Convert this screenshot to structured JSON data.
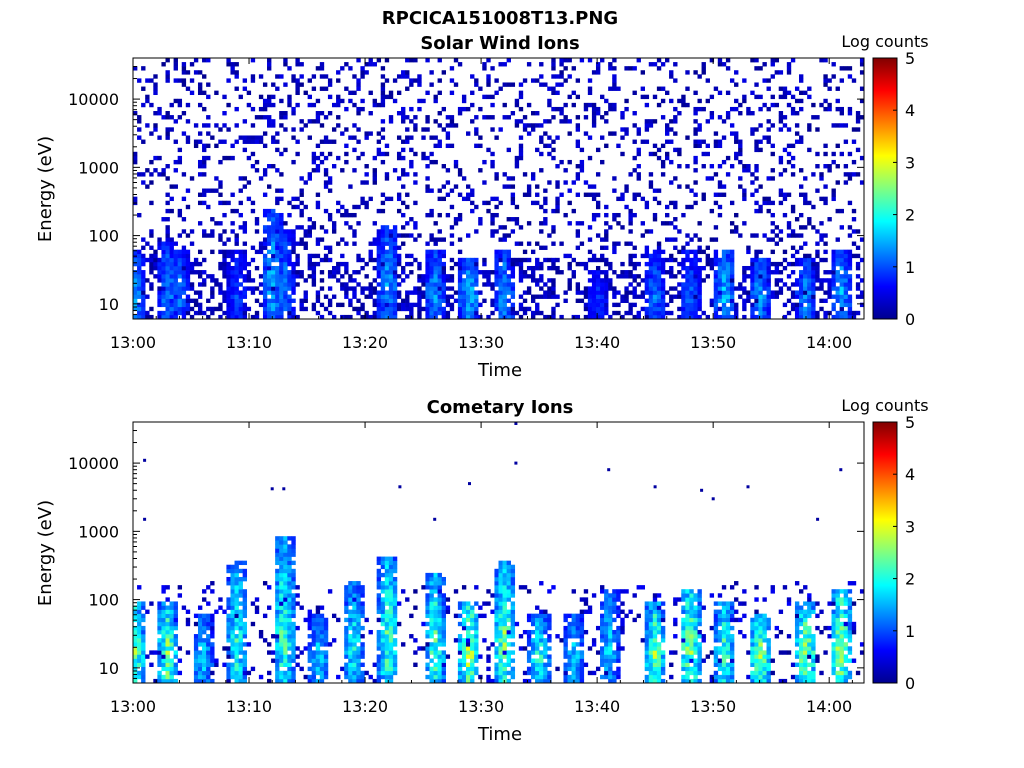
{
  "figure_title": "RPCICA151008T13.PNG",
  "colorbar": {
    "label": "Log counts",
    "range": [
      0,
      5
    ],
    "ticks": [
      "0",
      "1",
      "2",
      "3",
      "4",
      "5"
    ],
    "colormap": [
      "#00008f",
      "#0000ff",
      "#0080ff",
      "#00ffff",
      "#80ff80",
      "#ffff00",
      "#ff8000",
      "#ff0000",
      "#800000"
    ]
  },
  "chart_data": [
    {
      "type": "heatmap",
      "title": "Solar Wind Ions",
      "xlabel": "Time",
      "ylabel": "Energy (eV)",
      "yscale": "log",
      "xlim": [
        "13:00",
        "14:03"
      ],
      "ylim": [
        6,
        40000
      ],
      "x_ticks": [
        "13:00",
        "13:10",
        "13:20",
        "13:30",
        "13:40",
        "13:50",
        "14:00"
      ],
      "y_ticks": [
        "10",
        "100",
        "1000",
        "10000"
      ],
      "grid": false,
      "background_noise": {
        "energy_range": [
          6,
          40000
        ],
        "typical_log_counts": [
          0,
          0.5
        ]
      },
      "bursts": [
        {
          "t": "13:00",
          "emin": 6,
          "emax": 60,
          "peak": 1.6
        },
        {
          "t": "13:03",
          "emin": 6,
          "emax": 80,
          "peak": 1.4
        },
        {
          "t": "13:04",
          "emin": 6,
          "emax": 60,
          "peak": 1.3
        },
        {
          "t": "13:09",
          "emin": 6,
          "emax": 60,
          "peak": 1.0
        },
        {
          "t": "13:12",
          "emin": 6,
          "emax": 250,
          "peak": 1.6
        },
        {
          "t": "13:13",
          "emin": 6,
          "emax": 120,
          "peak": 1.3
        },
        {
          "t": "13:22",
          "emin": 6,
          "emax": 150,
          "peak": 1.5
        },
        {
          "t": "13:26",
          "emin": 6,
          "emax": 60,
          "peak": 1.5
        },
        {
          "t": "13:29",
          "emin": 6,
          "emax": 50,
          "peak": 1.7
        },
        {
          "t": "13:32",
          "emin": 6,
          "emax": 60,
          "peak": 1.5
        },
        {
          "t": "13:40",
          "emin": 6,
          "emax": 30,
          "peak": 1.0
        },
        {
          "t": "13:45",
          "emin": 6,
          "emax": 60,
          "peak": 1.3
        },
        {
          "t": "13:48",
          "emin": 6,
          "emax": 60,
          "peak": 1.2
        },
        {
          "t": "13:51",
          "emin": 6,
          "emax": 60,
          "peak": 1.7
        },
        {
          "t": "13:54",
          "emin": 6,
          "emax": 50,
          "peak": 1.5
        },
        {
          "t": "13:58",
          "emin": 6,
          "emax": 50,
          "peak": 1.4
        },
        {
          "t": "14:01",
          "emin": 6,
          "emax": 60,
          "peak": 1.6
        }
      ]
    },
    {
      "type": "heatmap",
      "title": "Cometary Ions",
      "xlabel": "Time",
      "ylabel": "Energy (eV)",
      "yscale": "log",
      "xlim": [
        "13:00",
        "14:03"
      ],
      "ylim": [
        6,
        40000
      ],
      "x_ticks": [
        "13:00",
        "13:10",
        "13:20",
        "13:30",
        "13:40",
        "13:50",
        "14:00"
      ],
      "y_ticks": [
        "10",
        "100",
        "1000",
        "10000"
      ],
      "grid": false,
      "background_noise": {
        "energy_range": [
          6,
          200
        ],
        "typical_log_counts": [
          0,
          0.6
        ]
      },
      "bursts": [
        {
          "t": "13:00",
          "emin": 6,
          "emax": 100,
          "peak": 2.8
        },
        {
          "t": "13:03",
          "emin": 6,
          "emax": 100,
          "peak": 2.6
        },
        {
          "t": "13:06",
          "emin": 6,
          "emax": 60,
          "peak": 1.8
        },
        {
          "t": "13:09",
          "emin": 6,
          "emax": 350,
          "peak": 2.2
        },
        {
          "t": "13:13",
          "emin": 6,
          "emax": 800,
          "peak": 2.4
        },
        {
          "t": "13:16",
          "emin": 6,
          "emax": 60,
          "peak": 1.8
        },
        {
          "t": "13:19",
          "emin": 6,
          "emax": 200,
          "peak": 2.0
        },
        {
          "t": "13:22",
          "emin": 6,
          "emax": 450,
          "peak": 2.4
        },
        {
          "t": "13:26",
          "emin": 6,
          "emax": 250,
          "peak": 2.4
        },
        {
          "t": "13:29",
          "emin": 6,
          "emax": 100,
          "peak": 2.9
        },
        {
          "t": "13:32",
          "emin": 6,
          "emax": 350,
          "peak": 2.6
        },
        {
          "t": "13:35",
          "emin": 6,
          "emax": 60,
          "peak": 2.2
        },
        {
          "t": "13:38",
          "emin": 6,
          "emax": 60,
          "peak": 1.8
        },
        {
          "t": "13:41",
          "emin": 6,
          "emax": 150,
          "peak": 1.8
        },
        {
          "t": "13:45",
          "emin": 6,
          "emax": 100,
          "peak": 2.6
        },
        {
          "t": "13:48",
          "emin": 6,
          "emax": 150,
          "peak": 2.8
        },
        {
          "t": "13:51",
          "emin": 6,
          "emax": 100,
          "peak": 2.4
        },
        {
          "t": "13:54",
          "emin": 6,
          "emax": 60,
          "peak": 2.8
        },
        {
          "t": "13:58",
          "emin": 6,
          "emax": 100,
          "peak": 2.8
        },
        {
          "t": "14:01",
          "emin": 6,
          "emax": 150,
          "peak": 2.8
        }
      ],
      "scattered_points": [
        {
          "t": "13:01",
          "e": 11000
        },
        {
          "t": "13:01",
          "e": 1500
        },
        {
          "t": "13:12",
          "e": 4200
        },
        {
          "t": "13:13",
          "e": 4200
        },
        {
          "t": "13:23",
          "e": 4500
        },
        {
          "t": "13:26",
          "e": 1500
        },
        {
          "t": "13:29",
          "e": 5000
        },
        {
          "t": "13:33",
          "e": 10000
        },
        {
          "t": "13:33",
          "e": 38000
        },
        {
          "t": "13:41",
          "e": 8000
        },
        {
          "t": "13:45",
          "e": 4500
        },
        {
          "t": "13:49",
          "e": 4000
        },
        {
          "t": "13:50",
          "e": 3000
        },
        {
          "t": "13:53",
          "e": 4500
        },
        {
          "t": "13:59",
          "e": 1500
        },
        {
          "t": "14:01",
          "e": 8000
        }
      ]
    }
  ]
}
